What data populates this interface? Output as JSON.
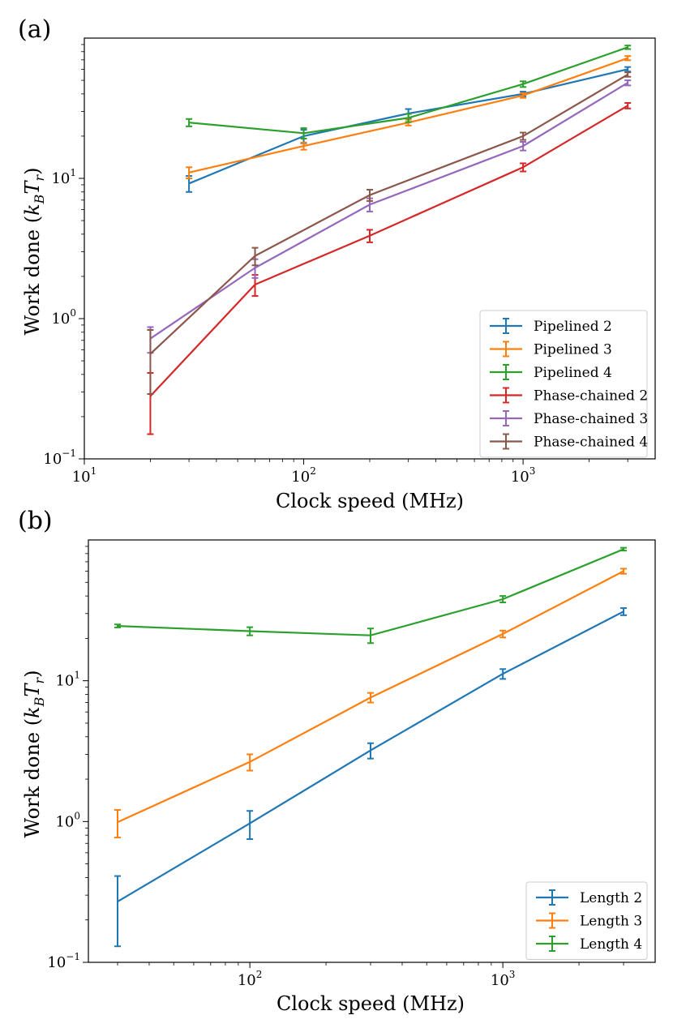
{
  "chart_data": [
    {
      "panel_label": "(a)",
      "type": "line",
      "xscale": "log",
      "yscale": "log",
      "xlim": [
        10,
        4000
      ],
      "ylim": [
        0.1,
        100
      ],
      "xticks": [
        {
          "v": 10,
          "label": "10",
          "exp": "1"
        },
        {
          "v": 100,
          "label": "10",
          "exp": "2"
        },
        {
          "v": 1000,
          "label": "10",
          "exp": "3"
        }
      ],
      "yticks": [
        {
          "v": 0.1,
          "label": "10",
          "exp": "−1"
        },
        {
          "v": 1,
          "label": "10",
          "exp": "0"
        },
        {
          "v": 10,
          "label": "10",
          "exp": "1"
        }
      ],
      "xlabel": "Clock speed (MHz)",
      "ylabel": "Work done (k_B T_r)",
      "ylabel_parts": {
        "text": "Work done (",
        "k": "k",
        "k_sub": "B",
        "t": "T",
        "t_sub": "r",
        "close": ")"
      },
      "legend_position": "lower-right",
      "series": [
        {
          "name": "Pipelined 2",
          "color": "#1f77b4",
          "x": [
            30,
            100,
            300,
            1000,
            3000
          ],
          "y": [
            9.2,
            20,
            29,
            40,
            60
          ],
          "err": [
            1.2,
            2.2,
            2.2,
            1.5,
            2.2
          ]
        },
        {
          "name": "Pipelined 3",
          "color": "#ff7f0e",
          "x": [
            30,
            100,
            300,
            1000,
            3000
          ],
          "y": [
            11,
            17,
            25,
            39,
            72
          ],
          "err": [
            1,
            1,
            1.2,
            1.5,
            2.5
          ]
        },
        {
          "name": "Pipelined 4",
          "color": "#2ca02c",
          "x": [
            30,
            100,
            300,
            1000,
            3000
          ],
          "y": [
            25,
            21,
            27,
            47,
            86
          ],
          "err": [
            1.5,
            1.8,
            1.8,
            2.2,
            2.5
          ]
        },
        {
          "name": "Phase-chained 2",
          "color": "#d62728",
          "x": [
            20,
            60,
            200,
            1000,
            3000
          ],
          "y": [
            0.28,
            1.75,
            3.9,
            12,
            33
          ],
          "err": [
            0.13,
            0.3,
            0.4,
            0.8,
            1.5
          ]
        },
        {
          "name": "Phase-chained 3",
          "color": "#9467bd",
          "x": [
            20,
            60,
            200,
            1000,
            3000
          ],
          "y": [
            0.72,
            2.3,
            6.5,
            17,
            48
          ],
          "err": [
            0.15,
            0.35,
            0.7,
            1.2,
            2
          ]
        },
        {
          "name": "Phase-chained 4",
          "color": "#8c564b",
          "x": [
            20,
            60,
            200,
            1000,
            3000
          ],
          "y": [
            0.56,
            2.8,
            7.6,
            20,
            55
          ],
          "err": [
            0.27,
            0.4,
            0.7,
            1.2,
            2
          ]
        }
      ]
    },
    {
      "panel_label": "(b)",
      "type": "line",
      "xscale": "log",
      "yscale": "log",
      "xlim": [
        23,
        4000
      ],
      "ylim": [
        0.1,
        100
      ],
      "xticks": [
        {
          "v": 100,
          "label": "10",
          "exp": "2"
        },
        {
          "v": 1000,
          "label": "10",
          "exp": "3"
        }
      ],
      "yticks": [
        {
          "v": 0.1,
          "label": "10",
          "exp": "−1"
        },
        {
          "v": 1,
          "label": "10",
          "exp": "0"
        },
        {
          "v": 10,
          "label": "10",
          "exp": "1"
        }
      ],
      "xlabel": "Clock speed (MHz)",
      "ylabel": "Work done (k_B T_r)",
      "ylabel_parts": {
        "text": "Work done (",
        "k": "k",
        "k_sub": "B",
        "t": "T",
        "t_sub": "r",
        "close": ")"
      },
      "legend_position": "lower-right",
      "series": [
        {
          "name": "Length 2",
          "color": "#1f77b4",
          "x": [
            30,
            100,
            300,
            1000,
            3000
          ],
          "y": [
            0.27,
            0.97,
            3.2,
            11.2,
            31
          ],
          "err": [
            0.14,
            0.22,
            0.4,
            0.9,
            1.8
          ]
        },
        {
          "name": "Length 3",
          "color": "#ff7f0e",
          "x": [
            30,
            100,
            300,
            1000,
            3000
          ],
          "y": [
            0.99,
            2.65,
            7.6,
            21.5,
            60
          ],
          "err": [
            0.22,
            0.35,
            0.6,
            1.2,
            2.5
          ]
        },
        {
          "name": "Length 4",
          "color": "#2ca02c",
          "x": [
            30,
            100,
            300,
            1000,
            3000
          ],
          "y": [
            24.5,
            22.5,
            21,
            38,
            86
          ],
          "err": [
            0.6,
            1.5,
            2.5,
            2,
            2
          ]
        }
      ]
    }
  ]
}
